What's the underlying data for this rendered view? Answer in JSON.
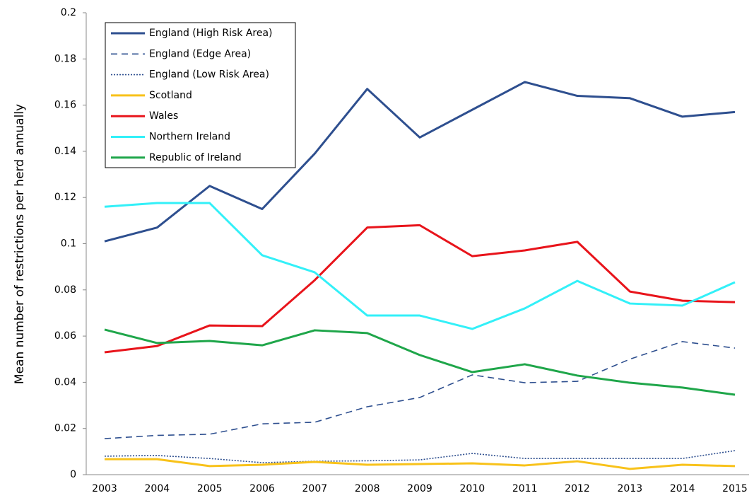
{
  "chart_data": {
    "type": "line",
    "y_label": "Mean number of restrictions per herd annually",
    "categories": [
      "2003",
      "2004",
      "2005",
      "2006",
      "2007",
      "2008",
      "2009",
      "2010",
      "2011",
      "2012",
      "2013",
      "2014",
      "2015"
    ],
    "ylim": [
      0,
      0.2
    ],
    "yticks": [
      0,
      0.02,
      0.04,
      0.06,
      0.08,
      0.1,
      0.12,
      0.14,
      0.16,
      0.18,
      0.2
    ],
    "legend": "upper left",
    "series": [
      {
        "name": "England (High Risk Area)",
        "color": "#2e4f8f",
        "dash": "solid",
        "values": [
          0.101,
          0.107,
          0.125,
          0.115,
          0.139,
          0.167,
          0.146,
          0.158,
          0.17,
          0.164,
          0.163,
          0.155,
          0.157
        ]
      },
      {
        "name": "England (Edge Area)",
        "color": "#2e4f8f",
        "dash": "dashed",
        "values": [
          0.0156,
          0.017,
          0.0175,
          0.022,
          0.0227,
          0.0294,
          0.0334,
          0.0432,
          0.0398,
          0.0404,
          0.05,
          0.0576,
          0.0548
        ]
      },
      {
        "name": "England (Low Risk Area)",
        "color": "#2e4f8f",
        "dash": "dotted",
        "values": [
          0.008,
          0.0083,
          0.007,
          0.0052,
          0.0058,
          0.006,
          0.0064,
          0.0092,
          0.007,
          0.007,
          0.007,
          0.007,
          0.0104
        ]
      },
      {
        "name": "Scotland",
        "color": "#f8c21a",
        "dash": "solid",
        "values": [
          0.0067,
          0.0067,
          0.0037,
          0.0043,
          0.0055,
          0.0043,
          0.0046,
          0.0049,
          0.004,
          0.0058,
          0.0025,
          0.0043,
          0.0037
        ]
      },
      {
        "name": "Wales",
        "color": "#e8141b",
        "dash": "solid",
        "values": [
          0.053,
          0.0557,
          0.0646,
          0.0643,
          0.0842,
          0.107,
          0.108,
          0.0946,
          0.0971,
          0.1008,
          0.0793,
          0.0753,
          0.0747
        ]
      },
      {
        "name": "Northern Ireland",
        "color": "#33f0f8",
        "dash": "solid",
        "values": [
          0.116,
          0.1176,
          0.1176,
          0.095,
          0.0876,
          0.0689,
          0.0689,
          0.0631,
          0.072,
          0.0839,
          0.0741,
          0.0732,
          0.0833
        ]
      },
      {
        "name": "Republic of Ireland",
        "color": "#1fa64a",
        "dash": "solid",
        "values": [
          0.0628,
          0.057,
          0.0579,
          0.056,
          0.0625,
          0.0613,
          0.0518,
          0.0444,
          0.0478,
          0.0429,
          0.0398,
          0.0377,
          0.0346
        ]
      }
    ]
  }
}
